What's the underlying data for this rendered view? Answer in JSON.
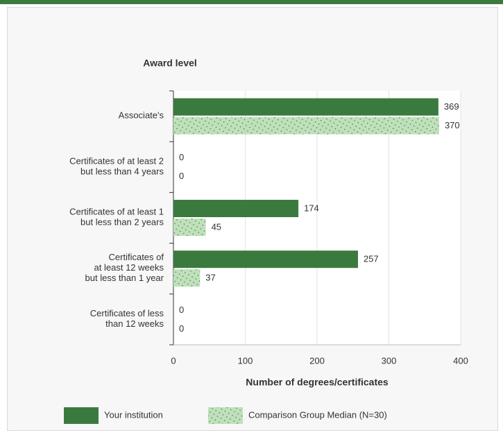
{
  "chart_data": {
    "type": "hbar",
    "title": "Award level",
    "xlabel": "Number of degrees/certificates",
    "categories": [
      "Associate's",
      "Certificates of at least 2\nbut less than 4 years",
      "Certificates of at least 1\nbut  less than 2 years",
      "Certificates of\nat least 12 weeks\nbut less than 1 year",
      "Certificates of less\nthan 12 weeks"
    ],
    "series": [
      {
        "name": "Your institution",
        "color": "#3b7a3f",
        "values": [
          369,
          0,
          174,
          257,
          0
        ]
      },
      {
        "name": "Comparison Group Median (N=30)",
        "color": "#bfe0bb",
        "hatch": true,
        "values": [
          370,
          0,
          45,
          37,
          0
        ]
      }
    ],
    "xlim": [
      0,
      400
    ],
    "xticks": [
      0,
      100,
      200,
      300,
      400
    ],
    "grid": true
  }
}
